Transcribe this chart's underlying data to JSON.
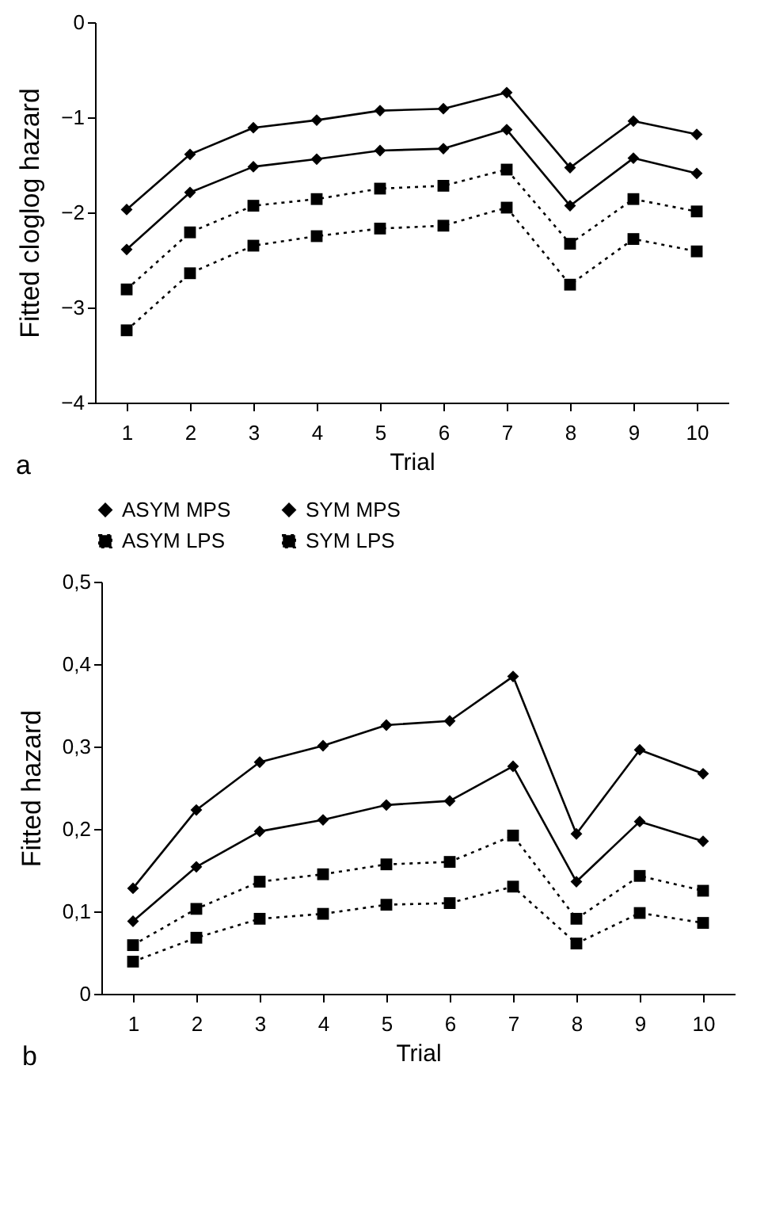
{
  "chart_data": [
    {
      "type": "line",
      "xlabel": "Trial",
      "ylabel": "Fitted cloglog hazard",
      "annotations": [
        "a"
      ],
      "categories": [
        "1",
        "2",
        "3",
        "4",
        "5",
        "6",
        "7",
        "8",
        "9",
        "10"
      ],
      "ylim": [
        -4,
        0
      ],
      "yticks": [
        -4,
        -3,
        -2,
        -1,
        0
      ],
      "legend": "bottom",
      "series": [
        {
          "name": "ASYM MPS",
          "color": "#000000",
          "marker": "diamond",
          "line_style": "solid",
          "values": [
            -2.39,
            -1.79,
            -1.52,
            -1.44,
            -1.35,
            -1.33,
            -1.13,
            -1.93,
            -1.43,
            -1.59
          ]
        },
        {
          "name": "SYM MPS",
          "color": "#000000",
          "marker": "diamond",
          "line_style": "solid",
          "values": [
            -1.97,
            -1.39,
            -1.11,
            -1.03,
            -0.93,
            -0.91,
            -0.74,
            -1.53,
            -1.04,
            -1.18
          ]
        },
        {
          "name": "ASYM LPS",
          "color": "#000000",
          "marker": "square",
          "line_style": "dotted",
          "values": [
            -3.24,
            -2.64,
            -2.35,
            -2.25,
            -2.17,
            -2.14,
            -1.95,
            -2.76,
            -2.28,
            -2.41
          ]
        },
        {
          "name": "SYM LPS",
          "color": "#000000",
          "marker": "square",
          "line_style": "dotted",
          "values": [
            -2.81,
            -2.21,
            -1.93,
            -1.86,
            -1.75,
            -1.72,
            -1.55,
            -2.33,
            -1.86,
            -1.99
          ]
        }
      ]
    },
    {
      "type": "line",
      "xlabel": "Trial",
      "ylabel": "Fitted hazard",
      "annotations": [
        "b"
      ],
      "categories": [
        "1",
        "2",
        "3",
        "4",
        "5",
        "6",
        "7",
        "8",
        "9",
        "10"
      ],
      "ylim": [
        0,
        0.5
      ],
      "yticks": [
        0,
        {
          "value": 0.1,
          "label": "0,1"
        },
        {
          "value": 0.2,
          "label": "0,2"
        },
        {
          "value": 0.3,
          "label": "0,3"
        },
        {
          "value": 0.4,
          "label": "0,4"
        },
        {
          "value": 0.5,
          "label": "0,5"
        }
      ],
      "series": [
        {
          "color": "#000000",
          "marker": "diamond",
          "line_style": "solid",
          "values": [
            0.088,
            0.154,
            0.197,
            0.211,
            0.229,
            0.234,
            0.276,
            0.136,
            0.209,
            0.185
          ]
        },
        {
          "color": "#000000",
          "marker": "diamond",
          "line_style": "solid",
          "values": [
            0.128,
            0.223,
            0.281,
            0.301,
            0.326,
            0.331,
            0.385,
            0.194,
            0.296,
            0.267
          ]
        },
        {
          "color": "#000000",
          "marker": "square",
          "line_style": "dotted",
          "values": [
            0.039,
            0.068,
            0.091,
            0.097,
            0.108,
            0.11,
            0.13,
            0.061,
            0.098,
            0.086
          ]
        },
        {
          "color": "#000000",
          "marker": "square",
          "line_style": "dotted",
          "values": [
            0.059,
            0.103,
            0.136,
            0.145,
            0.157,
            0.16,
            0.192,
            0.091,
            0.143,
            0.125
          ]
        }
      ]
    }
  ]
}
